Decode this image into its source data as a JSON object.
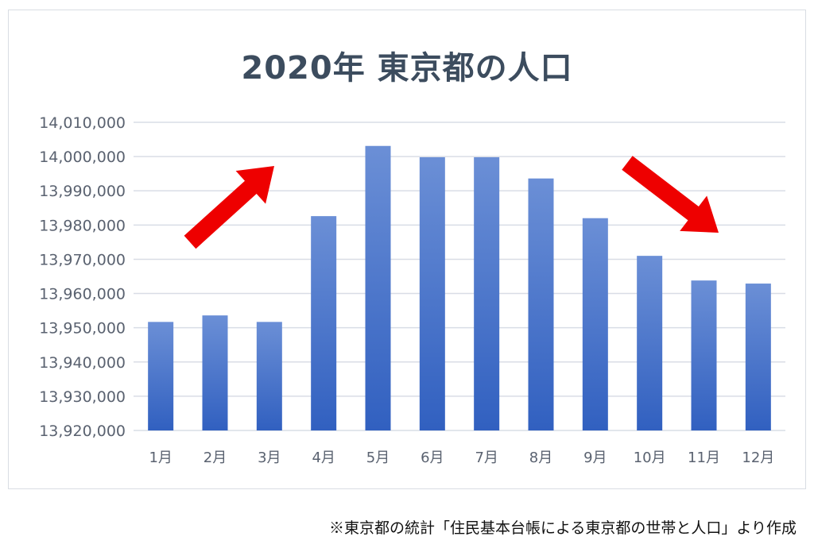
{
  "colors": {
    "bar_top": "#6b8fd6",
    "bar_bottom": "#3160c0",
    "gridline": "#d9dde6",
    "arrow": "#ee0000",
    "title": "#3c4c5e",
    "tick": "#5a6270"
  },
  "chart_data": {
    "type": "bar",
    "title": "2020年 東京都の人口",
    "xlabel": "",
    "ylabel": "",
    "categories": [
      "1月",
      "2月",
      "3月",
      "4月",
      "5月",
      "6月",
      "7月",
      "8月",
      "9月",
      "10月",
      "11月",
      "12月"
    ],
    "values": [
      13951700,
      13953600,
      13951700,
      13982600,
      14003100,
      13999800,
      13999800,
      13993600,
      13982000,
      13971000,
      13963800,
      13962900
    ],
    "ylim": [
      13920000,
      14010000
    ],
    "yticks": [
      "13,920,000",
      "13,930,000",
      "13,940,000",
      "13,950,000",
      "13,960,000",
      "13,970,000",
      "13,980,000",
      "13,990,000",
      "14,000,000",
      "14,010,000"
    ],
    "grid": true,
    "annotations": [
      {
        "type": "arrow",
        "direction": "up-right",
        "meaning": "increase"
      },
      {
        "type": "arrow",
        "direction": "down-right",
        "meaning": "decrease"
      }
    ]
  },
  "source_note": "※東京都の統計「住民基本台帳による東京都の世帯と人口」より作成"
}
